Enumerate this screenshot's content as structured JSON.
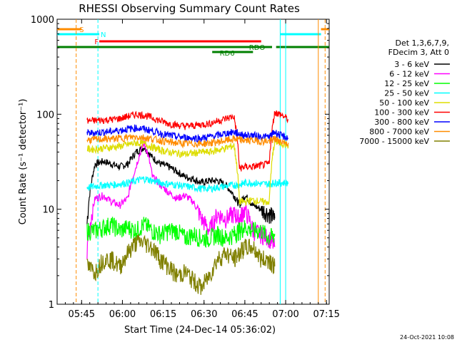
{
  "chart_data": {
    "type": "line",
    "title": "RHESSI Observing Summary Count Rates",
    "xlabel": "Start Time (24-Dec-14 05:36:02)",
    "ylabel": "Count Rate (s⁻¹ detector⁻¹)",
    "y_scale": "log",
    "ylim": [
      1,
      1000
    ],
    "xlim_minutes": [
      0,
      100
    ],
    "x_ticks": [
      {
        "t": 9,
        "label": "05:45"
      },
      {
        "t": 24,
        "label": "06:00"
      },
      {
        "t": 39,
        "label": "06:15"
      },
      {
        "t": 54,
        "label": "06:30"
      },
      {
        "t": 69,
        "label": "06:45"
      },
      {
        "t": 84,
        "label": "07:00"
      },
      {
        "t": 99,
        "label": "07:15"
      }
    ],
    "y_ticks": [
      {
        "v": 1,
        "label": "1"
      },
      {
        "v": 10,
        "label": "10"
      },
      {
        "v": 100,
        "label": "100"
      },
      {
        "v": 1000,
        "label": "1000"
      }
    ],
    "legend_header": [
      "Det 1,3,6,7,9,",
      "FDecim 3, Att 0"
    ],
    "series": [
      {
        "name": "3 - 6 keV",
        "color": "#000000",
        "x": [
          11,
          14,
          17,
          20,
          23,
          26,
          29,
          32,
          35,
          38,
          41,
          44,
          47,
          50,
          53,
          56,
          59,
          62,
          65,
          67,
          69,
          72,
          75,
          78,
          80
        ],
        "values": [
          7,
          30,
          32,
          30,
          28,
          30,
          40,
          45,
          35,
          30,
          28,
          25,
          22,
          21,
          19,
          20,
          20,
          18,
          14,
          11,
          14,
          11,
          10,
          9,
          8
        ]
      },
      {
        "name": "6 - 12 keV",
        "color": "#ff00ff",
        "x": [
          11,
          14,
          17,
          20,
          23,
          26,
          29,
          32,
          35,
          38,
          41,
          44,
          47,
          50,
          53,
          56,
          59,
          62,
          65,
          67,
          69,
          72,
          75,
          78,
          80
        ],
        "values": [
          3.5,
          13,
          14,
          12,
          11,
          13,
          28,
          50,
          22,
          18,
          15,
          13,
          14,
          12,
          8,
          6,
          9,
          8,
          9,
          8,
          10,
          6,
          5.5,
          5,
          4
        ]
      },
      {
        "name": "12 - 25 keV",
        "color": "#00ff00",
        "x": [
          11,
          14,
          17,
          20,
          23,
          26,
          29,
          32,
          35,
          38,
          41,
          44,
          47,
          50,
          53,
          56,
          59,
          62,
          65,
          67,
          69,
          72,
          75,
          78,
          80
        ],
        "values": [
          6,
          6,
          6.5,
          7,
          6,
          6.5,
          6,
          7,
          6,
          5.5,
          6,
          6,
          5,
          5.5,
          5,
          5,
          5.5,
          5,
          5.5,
          6,
          6.5,
          6,
          6,
          5,
          5.5
        ]
      },
      {
        "name": "25 - 50 keV",
        "color": "#00ffff",
        "x": [
          11,
          14,
          17,
          20,
          23,
          26,
          29,
          32,
          35,
          38,
          41,
          44,
          47,
          50,
          53,
          56,
          59,
          62,
          65,
          67,
          69,
          72,
          75,
          78,
          80,
          82,
          85
        ],
        "values": [
          17,
          17.5,
          18,
          18,
          18.5,
          19,
          20,
          21,
          20,
          19,
          18.5,
          18,
          17.5,
          17,
          16.5,
          16.5,
          17,
          17.5,
          18,
          18,
          19,
          19,
          18.5,
          18.5,
          19,
          19,
          19
        ]
      },
      {
        "name": "50 - 100 keV",
        "color": "#dddd00",
        "x": [
          11,
          14,
          17,
          20,
          23,
          26,
          29,
          32,
          35,
          38,
          41,
          44,
          47,
          50,
          53,
          56,
          59,
          62,
          65,
          67,
          69,
          72,
          75,
          78,
          80,
          82,
          85
        ],
        "values": [
          43,
          43,
          44,
          45,
          46,
          48,
          50,
          49,
          45,
          42,
          40,
          39,
          38,
          39,
          40,
          40,
          42,
          44,
          47,
          12,
          12,
          12.5,
          12,
          12,
          52,
          50,
          47
        ]
      },
      {
        "name": "100 - 300 keV",
        "color": "#ff0000",
        "x": [
          11,
          14,
          17,
          20,
          23,
          26,
          29,
          32,
          35,
          38,
          41,
          44,
          47,
          50,
          53,
          56,
          59,
          62,
          65,
          67,
          69,
          72,
          75,
          78,
          80,
          82,
          85
        ],
        "values": [
          85,
          86,
          87,
          88,
          90,
          95,
          100,
          98,
          92,
          85,
          80,
          77,
          75,
          76,
          78,
          80,
          85,
          90,
          95,
          27,
          28,
          28,
          29,
          30,
          105,
          100,
          88
        ]
      },
      {
        "name": "300 - 800 keV",
        "color": "#0000ff",
        "x": [
          11,
          14,
          17,
          20,
          23,
          26,
          29,
          32,
          35,
          38,
          41,
          44,
          47,
          50,
          53,
          56,
          59,
          62,
          65,
          67,
          69,
          72,
          75,
          78,
          80,
          82,
          85
        ],
        "values": [
          63,
          64,
          65,
          66,
          68,
          70,
          72,
          70,
          67,
          63,
          60,
          58,
          57,
          56,
          56,
          58,
          60,
          63,
          65,
          62,
          60,
          60,
          58,
          58,
          65,
          60,
          56
        ]
      },
      {
        "name": "800 - 7000 keV",
        "color": "#ff8c00",
        "x": [
          11,
          14,
          17,
          20,
          23,
          26,
          29,
          32,
          35,
          38,
          41,
          44,
          47,
          50,
          53,
          56,
          59,
          62,
          65,
          67,
          69,
          72,
          75,
          78,
          80,
          82,
          85
        ],
        "values": [
          54,
          54,
          55,
          55,
          56,
          57,
          58,
          57,
          55,
          53,
          51,
          50,
          49,
          49,
          49,
          50,
          51,
          53,
          55,
          54,
          53,
          53,
          52,
          52,
          55,
          52,
          50
        ]
      },
      {
        "name": "7000 - 15000 keV",
        "color": "#808000",
        "x": [
          11,
          14,
          17,
          20,
          23,
          26,
          29,
          32,
          35,
          38,
          41,
          44,
          47,
          50,
          53,
          56,
          59,
          62,
          65,
          67,
          69,
          72,
          75,
          78,
          80
        ],
        "values": [
          2.5,
          2.2,
          3,
          3,
          2.5,
          3.5,
          4.5,
          4.5,
          4,
          3,
          2.5,
          2,
          2.2,
          1.8,
          1.5,
          2,
          3,
          3.5,
          3,
          3.5,
          4,
          4,
          3,
          3,
          2.5
        ]
      }
    ],
    "annotations": {
      "bars": [
        {
          "label": "S",
          "color": "#ff8c00",
          "segments": [
            [
              0,
              9
            ],
            [
              97,
              100
            ]
          ]
        },
        {
          "label": "N",
          "color": "#00ffff",
          "segments": [
            [
              0,
              15.5
            ],
            [
              82,
              97
            ]
          ]
        },
        {
          "label": "F",
          "color": "#ff0000",
          "segments": [
            [
              15.5,
              75
            ]
          ]
        },
        {
          "label": "RDO",
          "color": "#008000",
          "segments": [
            [
              0,
              79
            ],
            [
              80.5,
              100
            ]
          ]
        },
        {
          "label": "RD6",
          "color": "#008000",
          "segments": [
            [
              57,
              72
            ]
          ]
        }
      ],
      "vlines": [
        {
          "t": 7,
          "color": "#ff8c00",
          "dash": true
        },
        {
          "t": 15,
          "color": "#00ffff",
          "dash": true
        },
        {
          "t": 82,
          "color": "#00ffff",
          "dash": false
        },
        {
          "t": 84,
          "color": "#00ffff",
          "dash": false
        },
        {
          "t": 96,
          "color": "#ff8c00",
          "dash": false
        },
        {
          "t": 98.5,
          "color": "#ff8c00",
          "dash": true
        }
      ]
    },
    "footer_date": "24-Oct-2021 10:08"
  }
}
